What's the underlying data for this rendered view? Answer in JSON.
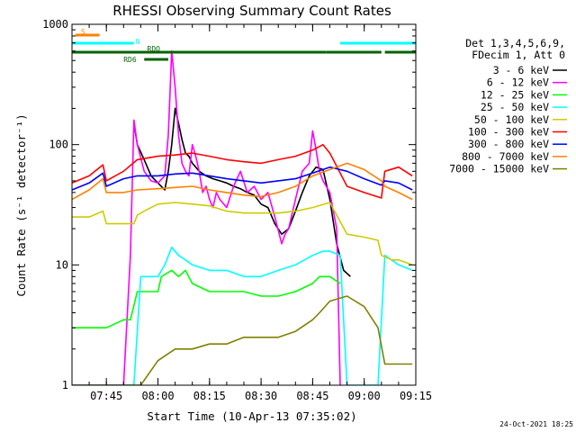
{
  "chart_data": {
    "type": "line",
    "title": "RHESSI Observing Summary Count Rates",
    "xlabel": "Start Time (10-Apr-13 07:35:02)",
    "ylabel": "Count Rate (s⁻¹ detector⁻¹)",
    "y_scale": "log",
    "ylim": [
      1,
      1000
    ],
    "xlim": [
      "07:35",
      "09:15"
    ],
    "x_tick_labels": [
      "07:45",
      "08:00",
      "08:15",
      "08:30",
      "08:45",
      "09:00",
      "09:15"
    ],
    "y_tick_labels": [
      "1",
      "10",
      "100",
      "1000"
    ],
    "timestamp": "24-Oct-2021 18:25",
    "legend_header": [
      "Det 1,3,4,5,6,9,",
      "FDecim 1, Att 0"
    ],
    "legend_placement": "right",
    "flag_bars": [
      {
        "label": "S",
        "color": "#ff8000",
        "segments": [
          [
            "07:36",
            "07:43"
          ]
        ]
      },
      {
        "label": "N",
        "color": "#00ffff",
        "segments": [
          [
            "07:35",
            "07:53"
          ],
          [
            "08:53",
            "09:15"
          ]
        ]
      },
      {
        "label": "RDO",
        "color": "#006400",
        "segments": [
          [
            "07:35",
            "08:49"
          ],
          [
            "08:49",
            "09:05"
          ],
          [
            "09:06",
            "09:15"
          ]
        ]
      },
      {
        "label": "RD6",
        "color": "#006400",
        "segments": [
          [
            "07:56",
            "08:03"
          ]
        ]
      }
    ],
    "series": [
      {
        "name": "3 - 6 keV",
        "color": "#000000",
        "x": [
          "07:53",
          "07:54",
          "07:56",
          "07:58",
          "08:00",
          "08:02",
          "08:03",
          "08:04",
          "08:05",
          "08:06",
          "08:07",
          "08:08",
          "08:09",
          "08:10",
          "08:11",
          "08:12",
          "08:14",
          "08:16",
          "08:18",
          "08:20",
          "08:22",
          "08:24",
          "08:26",
          "08:28",
          "08:30",
          "08:32",
          "08:34",
          "08:36",
          "08:38",
          "08:40",
          "08:42",
          "08:44",
          "08:46",
          "08:48",
          "08:50",
          "08:52",
          "08:54",
          "08:56"
        ],
        "values": [
          150,
          100,
          75,
          55,
          48,
          42,
          60,
          100,
          200,
          150,
          110,
          85,
          80,
          70,
          65,
          60,
          55,
          52,
          50,
          48,
          45,
          43,
          40,
          38,
          32,
          30,
          22,
          18,
          20,
          28,
          40,
          55,
          65,
          62,
          35,
          15,
          9,
          8
        ]
      },
      {
        "name": "6 - 12 keV",
        "color": "#ff00ff",
        "x": [
          "07:35",
          "07:40",
          "07:44",
          "07:45",
          "07:47",
          "07:50",
          "07:52",
          "07:53",
          "07:54",
          "07:56",
          "07:58",
          "08:00",
          "08:02",
          "08:03",
          "08:04",
          "08:05",
          "08:06",
          "08:07",
          "08:08",
          "08:09",
          "08:10",
          "08:11",
          "08:12",
          "08:13",
          "08:14",
          "08:15",
          "08:16",
          "08:17",
          "08:18",
          "08:20",
          "08:22",
          "08:24",
          "08:26",
          "08:28",
          "08:30",
          "08:32",
          "08:34",
          "08:36",
          "08:37",
          "08:38",
          "08:40",
          "08:42",
          "08:44",
          "08:45",
          "08:46",
          "08:47",
          "08:48",
          "08:50",
          "08:52",
          "08:53"
        ],
        "values": [
          1,
          1,
          1,
          1,
          1,
          1,
          12,
          160,
          100,
          60,
          50,
          48,
          55,
          120,
          600,
          300,
          120,
          70,
          60,
          55,
          100,
          80,
          60,
          40,
          45,
          35,
          30,
          40,
          35,
          30,
          45,
          60,
          40,
          45,
          35,
          40,
          25,
          15,
          18,
          20,
          35,
          60,
          70,
          130,
          90,
          60,
          50,
          40,
          20,
          1
        ]
      },
      {
        "name": "12 - 25 keV",
        "color": "#00ff00",
        "x": [
          "07:35",
          "07:40",
          "07:45",
          "07:50",
          "07:52",
          "07:54",
          "07:56",
          "07:58",
          "08:00",
          "08:01",
          "08:04",
          "08:06",
          "08:08",
          "08:10",
          "08:15",
          "08:20",
          "08:25",
          "08:30",
          "08:35",
          "08:40",
          "08:45",
          "08:47",
          "08:50",
          "08:53"
        ],
        "values": [
          3,
          3,
          3,
          3.5,
          3.5,
          6,
          6,
          6,
          6,
          8,
          9,
          8,
          9,
          7,
          6,
          6,
          6,
          5.5,
          5.5,
          6,
          7,
          8,
          8,
          7
        ]
      },
      {
        "name": "25 - 50 keV",
        "color": "#00ffff",
        "x": [
          "07:35",
          "07:40",
          "07:45",
          "07:50",
          "07:53",
          "07:55",
          "08:00",
          "08:02",
          "08:04",
          "08:06",
          "08:08",
          "08:10",
          "08:15",
          "08:20",
          "08:25",
          "08:30",
          "08:35",
          "08:40",
          "08:45",
          "08:48",
          "08:50",
          "08:53",
          "08:55",
          "09:00",
          "09:02",
          "09:04",
          "09:06",
          "09:10",
          "09:14"
        ],
        "values": [
          1,
          1,
          1,
          1,
          1,
          8,
          8,
          10,
          14,
          12,
          11,
          10,
          9,
          9,
          8,
          8,
          9,
          10,
          12,
          13,
          13,
          12,
          1,
          1,
          1,
          1,
          12,
          10,
          9
        ]
      },
      {
        "name": "50 - 100 keV",
        "color": "#cccc00",
        "x": [
          "07:35",
          "07:40",
          "07:44",
          "07:45",
          "07:50",
          "07:53",
          "07:54",
          "07:56",
          "07:58",
          "08:00",
          "08:05",
          "08:10",
          "08:15",
          "08:20",
          "08:25",
          "08:30",
          "08:35",
          "08:40",
          "08:45",
          "08:50",
          "08:55",
          "09:00",
          "09:04",
          "09:05",
          "09:08",
          "09:10",
          "09:14"
        ],
        "values": [
          25,
          25,
          28,
          22,
          22,
          22,
          26,
          28,
          30,
          32,
          33,
          32,
          31,
          28,
          27,
          27,
          27,
          28,
          30,
          33,
          18,
          17,
          16,
          12,
          11,
          11,
          10
        ]
      },
      {
        "name": "100 - 300 keV",
        "color": "#ff0000",
        "x": [
          "07:35",
          "07:40",
          "07:44",
          "07:45",
          "07:50",
          "07:54",
          "08:00",
          "08:05",
          "08:10",
          "08:15",
          "08:20",
          "08:25",
          "08:30",
          "08:35",
          "08:40",
          "08:45",
          "08:48",
          "08:50",
          "08:55",
          "09:00",
          "09:05",
          "09:06",
          "09:10",
          "09:14"
        ],
        "values": [
          48,
          55,
          68,
          50,
          60,
          75,
          80,
          82,
          85,
          80,
          75,
          72,
          70,
          75,
          80,
          90,
          100,
          85,
          45,
          40,
          36,
          60,
          65,
          55
        ]
      },
      {
        "name": "300 - 800 keV",
        "color": "#0000ff",
        "x": [
          "07:35",
          "07:40",
          "07:44",
          "07:45",
          "07:50",
          "07:54",
          "08:00",
          "08:05",
          "08:10",
          "08:15",
          "08:20",
          "08:25",
          "08:30",
          "08:35",
          "08:40",
          "08:45",
          "08:50",
          "08:55",
          "09:00",
          "09:05",
          "09:06",
          "09:10",
          "09:14"
        ],
        "values": [
          42,
          48,
          58,
          45,
          52,
          55,
          55,
          57,
          58,
          55,
          52,
          50,
          48,
          50,
          52,
          58,
          65,
          60,
          52,
          46,
          50,
          48,
          42
        ]
      },
      {
        "name": "800 - 7000 keV",
        "color": "#ff8000",
        "x": [
          "07:35",
          "07:40",
          "07:44",
          "07:45",
          "07:50",
          "07:54",
          "08:00",
          "08:05",
          "08:10",
          "08:15",
          "08:20",
          "08:25",
          "08:30",
          "08:35",
          "08:40",
          "08:45",
          "08:50",
          "08:55",
          "09:00",
          "09:05",
          "09:06",
          "09:10",
          "09:14"
        ],
        "values": [
          35,
          42,
          52,
          40,
          40,
          42,
          43,
          44,
          45,
          42,
          40,
          38,
          37,
          40,
          45,
          55,
          62,
          70,
          62,
          50,
          45,
          40,
          35
        ]
      },
      {
        "name": "7000 - 15000 keV",
        "color": "#808000",
        "x": [
          "07:35",
          "07:40",
          "07:45",
          "07:50",
          "07:55",
          "08:00",
          "08:05",
          "08:10",
          "08:15",
          "08:20",
          "08:25",
          "08:30",
          "08:35",
          "08:40",
          "08:45",
          "08:47",
          "08:50",
          "08:55",
          "09:00",
          "09:04",
          "09:06",
          "09:10",
          "09:14"
        ],
        "values": [
          1,
          1,
          1,
          1,
          1,
          1.6,
          2,
          2,
          2.2,
          2.2,
          2.5,
          2.5,
          2.5,
          2.8,
          3.5,
          4,
          5,
          5.5,
          4.5,
          3,
          1.5,
          1.5,
          1.5
        ]
      }
    ]
  }
}
